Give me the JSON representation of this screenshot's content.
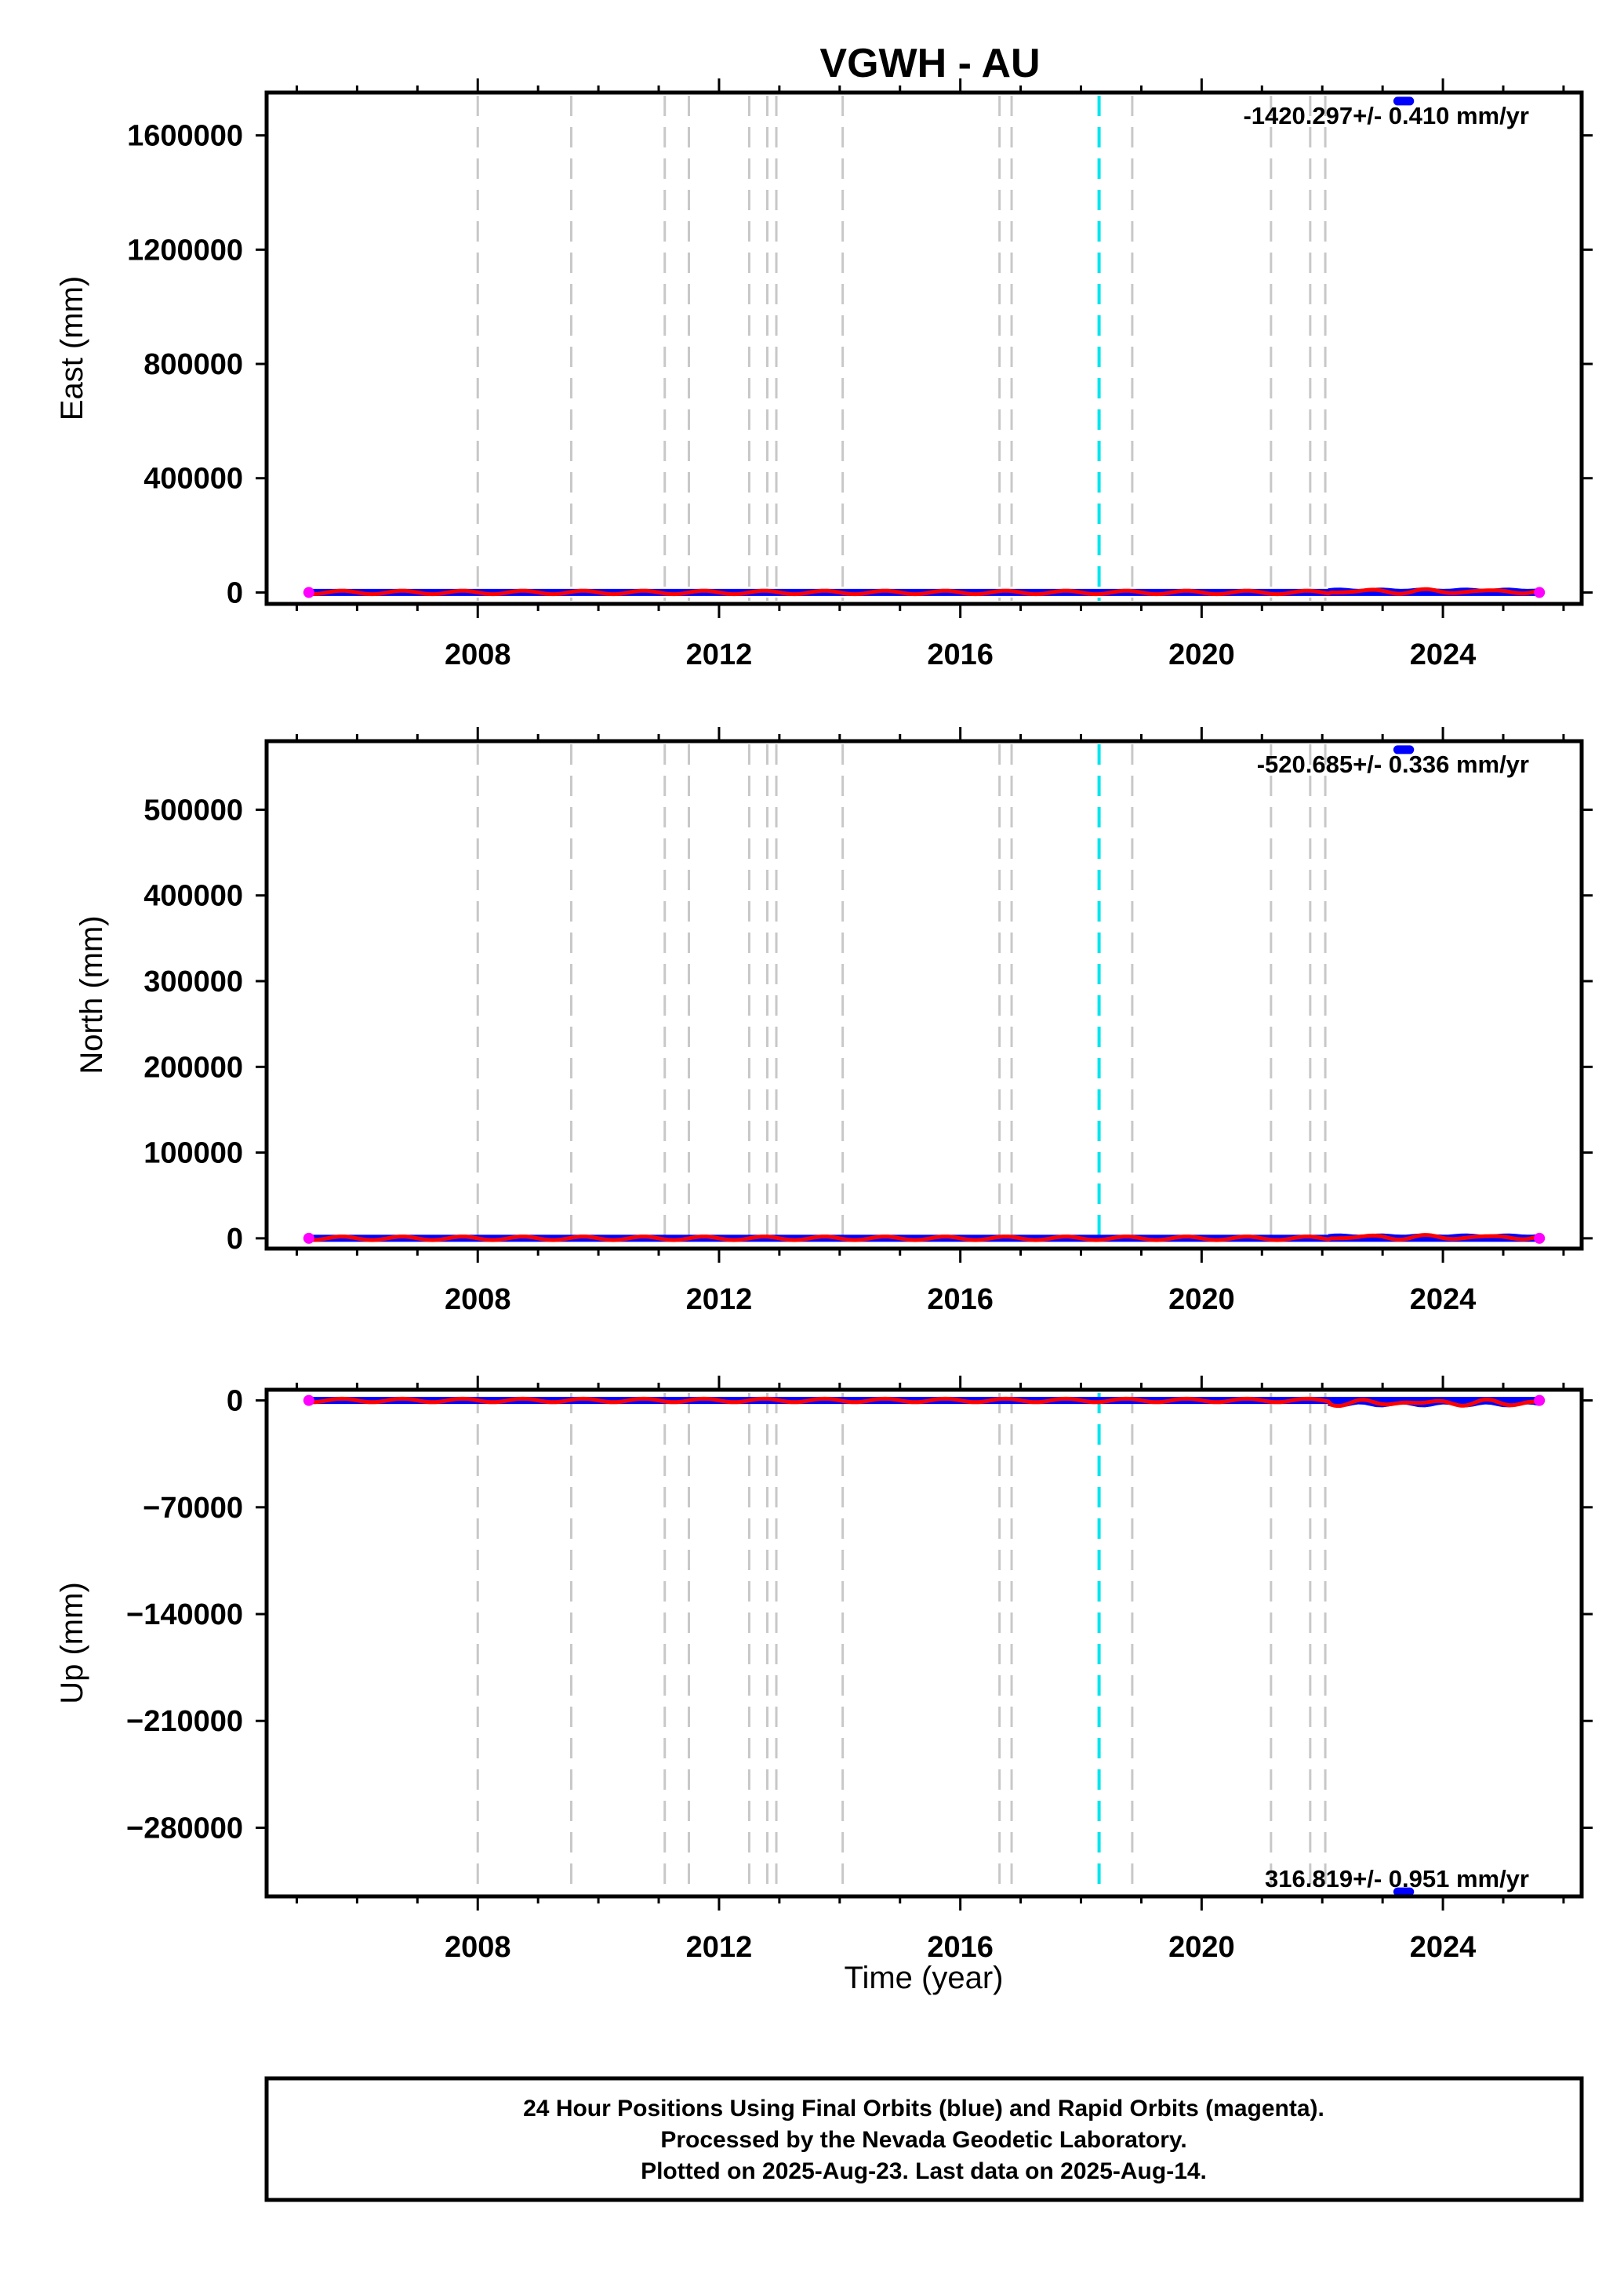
{
  "chart_data": {
    "type": "scatter",
    "title": "VGWH - AU",
    "xlabel": "Time (year)",
    "xlim": [
      2004.5,
      2026.3
    ],
    "x_tick_labels": [
      "2008",
      "2012",
      "2016",
      "2020",
      "2024"
    ],
    "x_ticks": [
      2008,
      2012,
      2016,
      2020,
      2024
    ],
    "event_lines": {
      "gray_dashed": [
        2008.0,
        2009.55,
        2011.1,
        2011.5,
        2012.5,
        2012.8,
        2012.95,
        2014.05,
        2016.65,
        2016.85,
        2018.85,
        2021.15,
        2021.8,
        2022.05
      ],
      "cyan_dashed": [
        2018.3
      ]
    },
    "legend_text": [
      "24 Hour Positions Using Final Orbits (blue) and Rapid Orbits (magenta).",
      "Processed by the Nevada Geodetic Laboratory.",
      "Plotted on 2025-Aug-23. Last data on 2025-Aug-14."
    ],
    "colors": {
      "final_orbits": "#0000ff",
      "rapid_orbits": "#ff00ff",
      "model_fit": "#ff0000",
      "event_line": "#c8c8c8",
      "antenna_change_line": "#00e5ee"
    },
    "panels": [
      {
        "ylabel": "East (mm)",
        "ylim": [
          -40000,
          1750000
        ],
        "y_ticks": [
          0,
          400000,
          800000,
          1200000,
          1600000
        ],
        "y_tick_labels": [
          "0",
          "400000",
          "800000",
          "1200000",
          "1600000"
        ],
        "rate_label": "-1420.297+/- 0.410 mm/yr",
        "time_range": [
          2005.2,
          2025.6
        ],
        "baseline_value": 0,
        "outlier": {
          "x": [
            2023.25,
            2023.45
          ],
          "y": 1720000
        },
        "late_wiggle": {
          "start": 2022.1,
          "amplitude": 6000
        }
      },
      {
        "ylabel": "North (mm)",
        "ylim": [
          -12000,
          580000
        ],
        "y_ticks": [
          0,
          100000,
          200000,
          300000,
          400000,
          500000
        ],
        "y_tick_labels": [
          "0",
          "100000",
          "200000",
          "300000",
          "400000",
          "500000"
        ],
        "rate_label": "-520.685+/- 0.336 mm/yr",
        "time_range": [
          2005.2,
          2025.6
        ],
        "baseline_value": 0,
        "outlier": {
          "x": [
            2023.25,
            2023.45
          ],
          "y": 570000
        },
        "late_wiggle": {
          "start": 2022.1,
          "amplitude": 2000
        }
      },
      {
        "ylabel": "Up (mm)",
        "ylim": [
          -325000,
          7000
        ],
        "y_ticks": [
          0,
          -70000,
          -140000,
          -210000,
          -280000
        ],
        "y_tick_labels": [
          "0",
          "−70000",
          "−140000",
          "−210000",
          "−280000"
        ],
        "rate_label": "316.819+/- 0.951 mm/yr",
        "time_range": [
          2005.2,
          2025.6
        ],
        "baseline_value": 0,
        "outlier": {
          "x": [
            2023.25,
            2023.45
          ],
          "y": -322000
        },
        "late_wiggle": {
          "start": 2022.1,
          "amplitude": -2500
        }
      }
    ]
  }
}
